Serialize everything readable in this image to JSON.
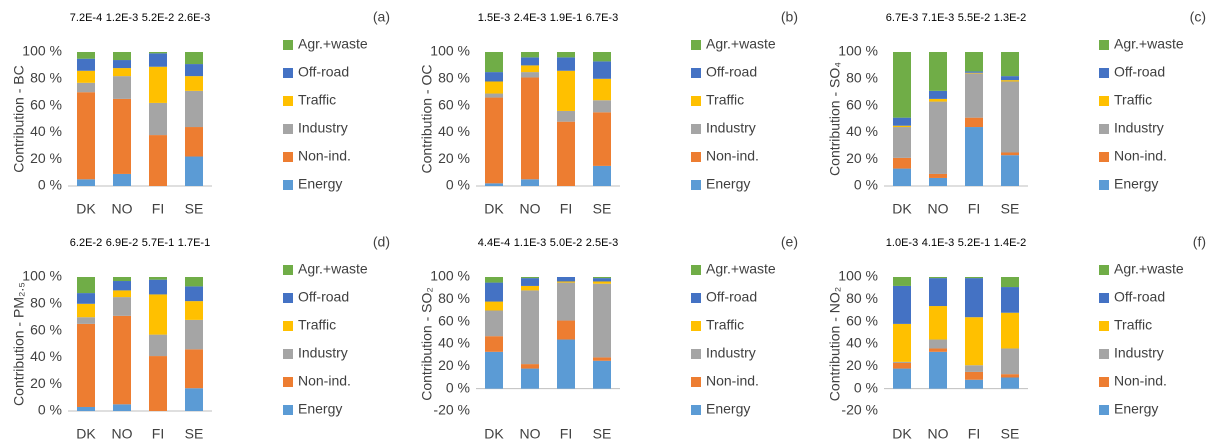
{
  "chart_data": [
    {
      "type": "bar",
      "stacked": true,
      "panel_label": "(a)",
      "ylabel": "Contribution - BC",
      "categories": [
        "DK",
        "NO",
        "FI",
        "SE"
      ],
      "annotations": [
        "7.2E-4",
        "1.2E-3",
        "5.2E-2",
        "2.6E-3"
      ],
      "ylim": [
        0,
        100
      ],
      "yticks": [
        {
          "value": 0,
          "label": "0 %"
        },
        {
          "value": 20,
          "label": "20 %"
        },
        {
          "value": 40,
          "label": "40 %"
        },
        {
          "value": 60,
          "label": "60 %"
        },
        {
          "value": 80,
          "label": "80 %"
        },
        {
          "value": 100,
          "label": "100 %"
        }
      ],
      "grid": false,
      "series": [
        {
          "name": "Energy",
          "color": "#5b9bd5",
          "values": [
            5,
            9,
            0,
            22
          ]
        },
        {
          "name": "Non-ind.",
          "color": "#ed7d31",
          "values": [
            65,
            56,
            38,
            22
          ]
        },
        {
          "name": "Industry",
          "color": "#a5a5a5",
          "values": [
            7,
            17,
            24,
            27
          ]
        },
        {
          "name": "Traffic",
          "color": "#ffc000",
          "values": [
            9,
            6,
            27,
            11
          ]
        },
        {
          "name": "Off-road",
          "color": "#4472c4",
          "values": [
            9,
            6,
            10,
            9
          ]
        },
        {
          "name": "Agr.+waste",
          "color": "#70ad47",
          "values": [
            5,
            6,
            1,
            9
          ]
        }
      ]
    },
    {
      "type": "bar",
      "stacked": true,
      "panel_label": "(b)",
      "ylabel": "Contribution - OC",
      "categories": [
        "DK",
        "NO",
        "FI",
        "SE"
      ],
      "annotations": [
        "1.5E-3",
        "2.4E-3",
        "1.9E-1",
        "6.7E-3"
      ],
      "ylim": [
        0,
        100
      ],
      "yticks": [
        {
          "value": 0,
          "label": "0 %"
        },
        {
          "value": 20,
          "label": "20 %"
        },
        {
          "value": 40,
          "label": "40 %"
        },
        {
          "value": 60,
          "label": "60 %"
        },
        {
          "value": 80,
          "label": "80 %"
        },
        {
          "value": 100,
          "label": "100 %"
        }
      ],
      "grid": false,
      "series": [
        {
          "name": "Energy",
          "color": "#5b9bd5",
          "values": [
            2,
            5,
            0,
            15
          ]
        },
        {
          "name": "Non-ind.",
          "color": "#ed7d31",
          "values": [
            64,
            76,
            48,
            40
          ]
        },
        {
          "name": "Industry",
          "color": "#a5a5a5",
          "values": [
            3,
            4,
            8,
            9
          ]
        },
        {
          "name": "Traffic",
          "color": "#ffc000",
          "values": [
            9,
            5,
            30,
            16
          ]
        },
        {
          "name": "Off-road",
          "color": "#4472c4",
          "values": [
            7,
            6,
            10,
            13
          ]
        },
        {
          "name": "Agr.+waste",
          "color": "#70ad47",
          "values": [
            15,
            4,
            4,
            7
          ]
        }
      ]
    },
    {
      "type": "bar",
      "stacked": true,
      "panel_label": "(c)",
      "ylabel": "Contribution - SO₄",
      "categories": [
        "DK",
        "NO",
        "FI",
        "SE"
      ],
      "annotations": [
        "6.7E-3",
        "7.1E-3",
        "5.5E-2",
        "1.3E-2"
      ],
      "ylim": [
        0,
        100
      ],
      "yticks": [
        {
          "value": 0,
          "label": "0 %"
        },
        {
          "value": 20,
          "label": "20 %"
        },
        {
          "value": 40,
          "label": "40 %"
        },
        {
          "value": 60,
          "label": "60 %"
        },
        {
          "value": 80,
          "label": "80 %"
        },
        {
          "value": 100,
          "label": "100 %"
        }
      ],
      "grid": false,
      "series": [
        {
          "name": "Energy",
          "color": "#5b9bd5",
          "values": [
            13,
            6,
            44,
            23
          ]
        },
        {
          "name": "Non-ind.",
          "color": "#ed7d31",
          "values": [
            8,
            3,
            7,
            2
          ]
        },
        {
          "name": "Industry",
          "color": "#a5a5a5",
          "values": [
            23,
            54,
            33,
            53
          ]
        },
        {
          "name": "Traffic",
          "color": "#ffc000",
          "values": [
            1,
            2,
            0.5,
            1
          ]
        },
        {
          "name": "Off-road",
          "color": "#4472c4",
          "values": [
            6,
            6,
            1,
            3
          ]
        },
        {
          "name": "Agr.+waste",
          "color": "#70ad47",
          "values": [
            49,
            29,
            14.5,
            18
          ]
        }
      ]
    },
    {
      "type": "bar",
      "stacked": true,
      "panel_label": "(d)",
      "ylabel": "Contribution - PM₂.₅",
      "categories": [
        "DK",
        "NO",
        "FI",
        "SE"
      ],
      "annotations": [
        "6.2E-2",
        "6.9E-2",
        "5.7E-1",
        "1.7E-1"
      ],
      "ylim": [
        0,
        100
      ],
      "yticks": [
        {
          "value": 0,
          "label": "0 %"
        },
        {
          "value": 20,
          "label": "20 %"
        },
        {
          "value": 40,
          "label": "40 %"
        },
        {
          "value": 60,
          "label": "60 %"
        },
        {
          "value": 80,
          "label": "80 %"
        },
        {
          "value": 100,
          "label": "100 %"
        }
      ],
      "grid": false,
      "series": [
        {
          "name": "Energy",
          "color": "#5b9bd5",
          "values": [
            3,
            5,
            0,
            17
          ]
        },
        {
          "name": "Non-ind.",
          "color": "#ed7d31",
          "values": [
            62,
            66,
            41,
            29
          ]
        },
        {
          "name": "Industry",
          "color": "#a5a5a5",
          "values": [
            5,
            14,
            16,
            22
          ]
        },
        {
          "name": "Traffic",
          "color": "#ffc000",
          "values": [
            10,
            5,
            30,
            14
          ]
        },
        {
          "name": "Off-road",
          "color": "#4472c4",
          "values": [
            8,
            7,
            11,
            11
          ]
        },
        {
          "name": "Agr.+waste",
          "color": "#70ad47",
          "values": [
            12,
            3,
            2,
            7
          ]
        }
      ]
    },
    {
      "type": "bar",
      "stacked": true,
      "panel_label": "(e)",
      "ylabel": "Contribution - SO₂",
      "categories": [
        "DK",
        "NO",
        "FI",
        "SE"
      ],
      "annotations": [
        "4.4E-4",
        "1.1E-3",
        "5.0E-2",
        "2.5E-3"
      ],
      "ylim": [
        -20,
        100
      ],
      "yticks": [
        {
          "value": -20,
          "label": "-20 %"
        },
        {
          "value": 0,
          "label": "0 %"
        },
        {
          "value": 20,
          "label": "20 %"
        },
        {
          "value": 40,
          "label": "40 %"
        },
        {
          "value": 60,
          "label": "60 %"
        },
        {
          "value": 80,
          "label": "80 %"
        },
        {
          "value": 100,
          "label": "100 %"
        }
      ],
      "grid": false,
      "series": [
        {
          "name": "Energy",
          "color": "#5b9bd5",
          "values": [
            33,
            18,
            44,
            25
          ]
        },
        {
          "name": "Non-ind.",
          "color": "#ed7d31",
          "values": [
            14,
            4,
            17,
            3
          ]
        },
        {
          "name": "Industry",
          "color": "#a5a5a5",
          "values": [
            23,
            66,
            34,
            66
          ]
        },
        {
          "name": "Traffic",
          "color": "#ffc000",
          "values": [
            8,
            4,
            1,
            2
          ]
        },
        {
          "name": "Off-road",
          "color": "#4472c4",
          "values": [
            17,
            7,
            4,
            3
          ]
        },
        {
          "name": "Agr.+waste",
          "color": "#70ad47",
          "values": [
            5,
            1,
            0,
            1
          ]
        }
      ]
    },
    {
      "type": "bar",
      "stacked": true,
      "panel_label": "(f)",
      "ylabel": "Contribution - NO₂",
      "categories": [
        "DK",
        "NO",
        "FI",
        "SE"
      ],
      "annotations": [
        "1.0E-3",
        "4.1E-3",
        "5.2E-1",
        "1.4E-2"
      ],
      "ylim": [
        -20,
        100
      ],
      "yticks": [
        {
          "value": -20,
          "label": "-20 %"
        },
        {
          "value": 0,
          "label": "0 %"
        },
        {
          "value": 20,
          "label": "20 %"
        },
        {
          "value": 40,
          "label": "40 %"
        },
        {
          "value": 60,
          "label": "60 %"
        },
        {
          "value": 80,
          "label": "80 %"
        },
        {
          "value": 100,
          "label": "100 %"
        }
      ],
      "grid": false,
      "series": [
        {
          "name": "Energy",
          "color": "#5b9bd5",
          "values": [
            18,
            33,
            8,
            10
          ]
        },
        {
          "name": "Non-ind.",
          "color": "#ed7d31",
          "values": [
            5,
            3,
            7,
            3
          ]
        },
        {
          "name": "Industry",
          "color": "#a5a5a5",
          "values": [
            1,
            8,
            6,
            23
          ]
        },
        {
          "name": "Traffic",
          "color": "#ffc000",
          "values": [
            34,
            30,
            43,
            32
          ]
        },
        {
          "name": "Off-road",
          "color": "#4472c4",
          "values": [
            34,
            25,
            35,
            23
          ]
        },
        {
          "name": "Agr.+waste",
          "color": "#70ad47",
          "values": [
            8,
            1,
            1,
            9
          ]
        }
      ]
    }
  ]
}
